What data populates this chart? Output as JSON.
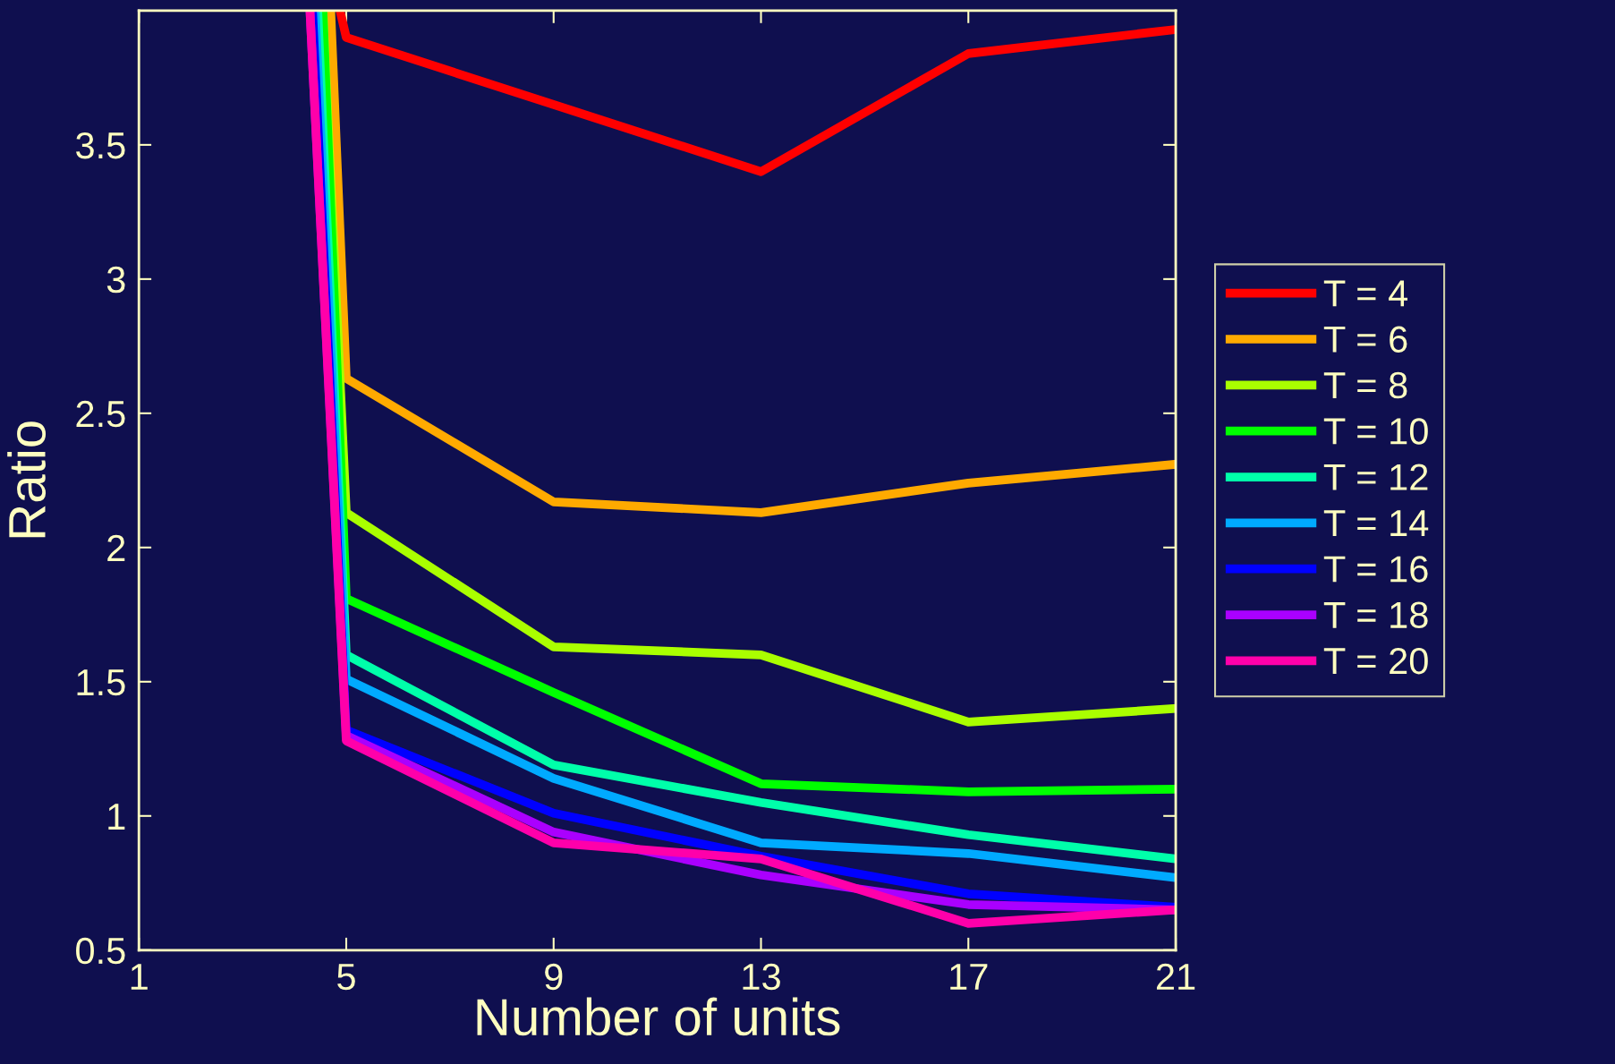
{
  "chart_data": {
    "type": "line",
    "xlabel": "Number of units",
    "ylabel": "Ratio",
    "xlim": [
      1,
      21
    ],
    "xticks": [
      1,
      5,
      9,
      13,
      17,
      21
    ],
    "ylim": [
      0.5,
      4
    ],
    "yticks": [
      0.5,
      1,
      1.5,
      2,
      2.5,
      3,
      3.5
    ],
    "grid": false,
    "legend": "right",
    "line_style": "solid",
    "marker": "none",
    "series": [
      {
        "name": "T = 4",
        "color": "#ff0000",
        "x": [
          4.88,
          5,
          9,
          13,
          17,
          21
        ],
        "values": [
          4,
          3.9,
          3.65,
          3.4,
          3.84,
          3.93
        ]
      },
      {
        "name": "T = 6",
        "color": "#ffaa00",
        "x": [
          4.7,
          5,
          9,
          13,
          17,
          21
        ],
        "values": [
          4,
          2.63,
          2.17,
          2.13,
          2.24,
          2.31
        ]
      },
      {
        "name": "T = 8",
        "color": "#aaff00",
        "x": [
          4.55,
          5,
          9,
          13,
          17,
          21
        ],
        "values": [
          4,
          2.13,
          1.63,
          1.6,
          1.35,
          1.4
        ]
      },
      {
        "name": "T = 10",
        "color": "#00ff00",
        "x": [
          4.55,
          5,
          9,
          13,
          17,
          21
        ],
        "values": [
          4,
          1.81,
          1.46,
          1.12,
          1.09,
          1.1
        ]
      },
      {
        "name": "T = 12",
        "color": "#00ffaa",
        "x": [
          4.45,
          5,
          9,
          13,
          17,
          21
        ],
        "values": [
          4,
          1.6,
          1.19,
          1.05,
          0.93,
          0.84
        ]
      },
      {
        "name": "T = 14",
        "color": "#00aaff",
        "x": [
          4.4,
          5,
          9,
          13,
          17,
          21
        ],
        "values": [
          4,
          1.51,
          1.14,
          0.9,
          0.86,
          0.77
        ]
      },
      {
        "name": "T = 16",
        "color": "#0000ff",
        "x": [
          4.35,
          5,
          9,
          13,
          17,
          21
        ],
        "values": [
          4,
          1.32,
          1.01,
          0.85,
          0.71,
          0.66
        ]
      },
      {
        "name": "T = 18",
        "color": "#aa00ff",
        "x": [
          4.3,
          5,
          9,
          13,
          17,
          21
        ],
        "values": [
          4,
          1.3,
          0.94,
          0.78,
          0.67,
          0.65
        ]
      },
      {
        "name": "T = 20",
        "color": "#ff00aa",
        "x": [
          4.3,
          5,
          9,
          13,
          17,
          21
        ],
        "values": [
          4,
          1.28,
          0.9,
          0.84,
          0.6,
          0.65
        ]
      }
    ]
  }
}
